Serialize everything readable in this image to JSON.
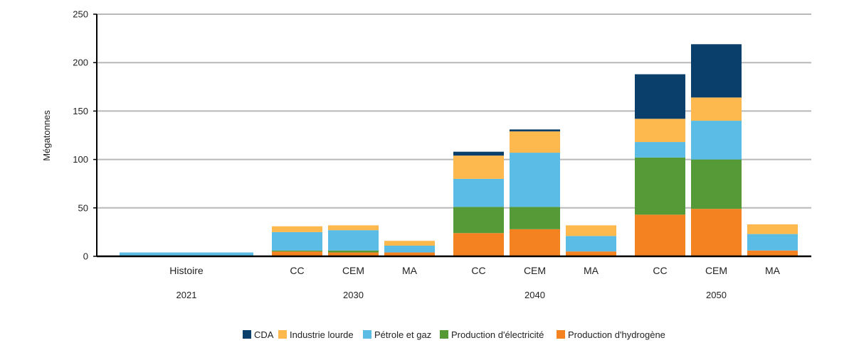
{
  "chart_data": {
    "type": "bar",
    "stacked": true,
    "ylabel": "Mégatonnes",
    "ylim": [
      0,
      250
    ],
    "yticks": [
      0,
      50,
      100,
      150,
      200,
      250
    ],
    "grid": true,
    "legend_position": "bottom",
    "groups": [
      {
        "label": "2021",
        "categories": [
          "Histoire"
        ]
      },
      {
        "label": "2030",
        "categories": [
          "CC",
          "CEM",
          "MA"
        ]
      },
      {
        "label": "2040",
        "categories": [
          "CC",
          "CEM",
          "MA"
        ]
      },
      {
        "label": "2050",
        "categories": [
          "CC",
          "CEM",
          "MA"
        ]
      }
    ],
    "categories": [
      "Histoire",
      "CC",
      "CEM",
      "MA",
      "CC",
      "CEM",
      "MA",
      "CC",
      "CEM",
      "MA"
    ],
    "series": [
      {
        "name": "Production d'hydrogène",
        "color": "#f58220",
        "values": [
          0,
          5,
          4,
          4,
          24,
          28,
          5,
          43,
          49,
          6
        ]
      },
      {
        "name": "Production d'électricité",
        "color": "#559a37",
        "values": [
          0,
          1,
          2,
          0,
          27,
          23,
          0,
          59,
          51,
          0
        ]
      },
      {
        "name": "Pétrole et gaz",
        "color": "#5bbde6",
        "values": [
          4,
          19,
          21,
          7,
          29,
          56,
          16,
          16,
          40,
          17
        ]
      },
      {
        "name": "Industrie lourde",
        "color": "#fdb94e",
        "values": [
          0,
          6,
          5,
          5,
          24,
          22,
          11,
          24,
          24,
          10
        ]
      },
      {
        "name": "CDA",
        "color": "#0b3f6b",
        "values": [
          0,
          0,
          0,
          0,
          4,
          2,
          0,
          46,
          55,
          0
        ]
      }
    ]
  }
}
